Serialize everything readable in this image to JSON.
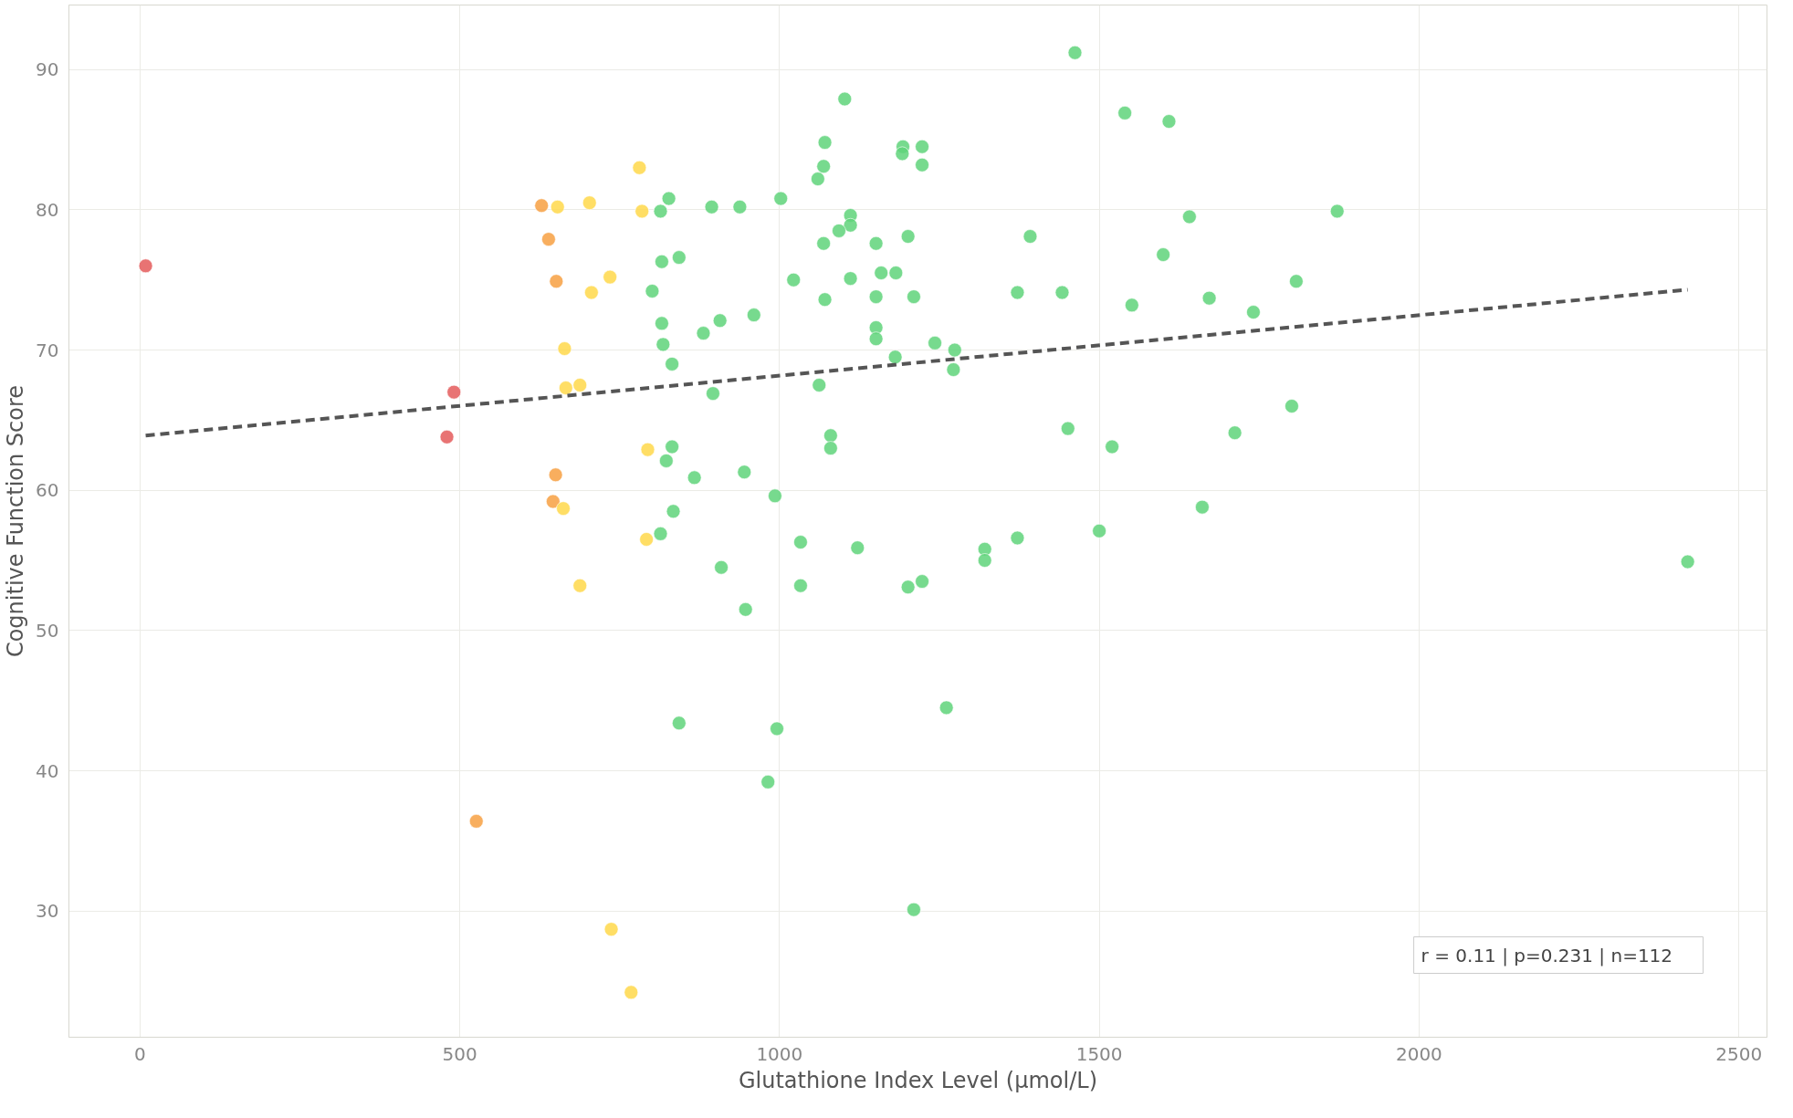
{
  "chart_data": {
    "type": "scatter",
    "xlabel": "Glutathione Index Level (µmol/L)",
    "ylabel": "Cognitive Function Score",
    "xlim": [
      -111,
      2544
    ],
    "ylim": [
      21,
      94.6
    ],
    "xticks": [
      0,
      500,
      1000,
      1500,
      2000,
      2500
    ],
    "yticks": [
      30,
      40,
      50,
      60,
      70,
      80,
      90
    ],
    "grid": true,
    "marker": "circle",
    "annotations": [
      "r = 0.11  |  p=0.231  |  n=112"
    ],
    "series": [
      {
        "color": "#e45b5b",
        "x": [
          9,
          491,
          480
        ],
        "values": [
          76.0,
          67.0,
          63.8
        ]
      },
      {
        "color": "#f7a042",
        "x": [
          628,
          639,
          651,
          650,
          646,
          526
        ],
        "values": [
          80.3,
          77.9,
          74.9,
          61.1,
          59.2,
          36.4
        ]
      },
      {
        "color": "#ffd84a",
        "x": [
          781,
          653,
          703,
          785,
          735,
          706,
          664,
          666,
          688,
          794,
          662,
          792,
          688,
          737,
          768
        ],
        "values": [
          83.0,
          80.2,
          80.5,
          79.9,
          75.2,
          74.1,
          70.1,
          67.3,
          67.5,
          62.9,
          58.7,
          56.5,
          53.2,
          28.7,
          24.2
        ]
      },
      {
        "color": "#5fd37a",
        "x": [
          827,
          814,
          894,
          938,
          1002,
          1102,
          1071,
          1069,
          1060,
          1193,
          1192,
          1223,
          1223,
          1462,
          1540,
          1609,
          1641,
          1872,
          1111,
          1111,
          1093,
          1069,
          1151,
          1201,
          1392,
          1600,
          816,
          843,
          801,
          1022,
          1111,
          1159,
          1182,
          1071,
          1151,
          1210,
          1372,
          1442,
          1551,
          1672,
          1741,
          1808,
          816,
          818,
          832,
          881,
          907,
          960,
          1151,
          1151,
          1181,
          1243,
          1274,
          1272,
          1062,
          896,
          1801,
          1451,
          1520,
          1712,
          1080,
          1080,
          832,
          823,
          867,
          945,
          993,
          834,
          814,
          1033,
          1122,
          1321,
          1321,
          1372,
          1500,
          1661,
          2420,
          909,
          1033,
          1201,
          1223,
          947,
          1261,
          843,
          996,
          982,
          1210
        ],
        "values": [
          80.8,
          79.9,
          80.2,
          80.2,
          80.8,
          87.9,
          84.8,
          83.1,
          82.2,
          84.5,
          84.0,
          84.5,
          83.2,
          91.2,
          86.9,
          86.3,
          79.5,
          79.9,
          79.6,
          78.9,
          78.5,
          77.6,
          77.6,
          78.1,
          78.1,
          76.8,
          76.3,
          76.6,
          74.2,
          75.0,
          75.1,
          75.5,
          75.5,
          73.6,
          73.8,
          73.8,
          74.1,
          74.1,
          73.2,
          73.7,
          72.7,
          74.9,
          71.9,
          70.4,
          69.0,
          71.2,
          72.1,
          72.5,
          71.6,
          70.8,
          69.5,
          70.5,
          70.0,
          68.6,
          67.5,
          66.9,
          66.0,
          64.4,
          63.1,
          64.1,
          63.9,
          63.0,
          63.1,
          62.1,
          60.9,
          61.3,
          59.6,
          58.5,
          56.9,
          56.3,
          55.9,
          55.8,
          55.0,
          56.6,
          57.1,
          58.8,
          54.9,
          54.5,
          53.2,
          53.1,
          53.5,
          51.5,
          44.5,
          43.4,
          43.0,
          39.2,
          30.1
        ]
      },
      {
        "type": "line",
        "color": "#555555",
        "line_style": "dashed",
        "marker": "none",
        "x": [
          9,
          2420
        ],
        "values": [
          63.9,
          74.3
        ]
      }
    ]
  }
}
